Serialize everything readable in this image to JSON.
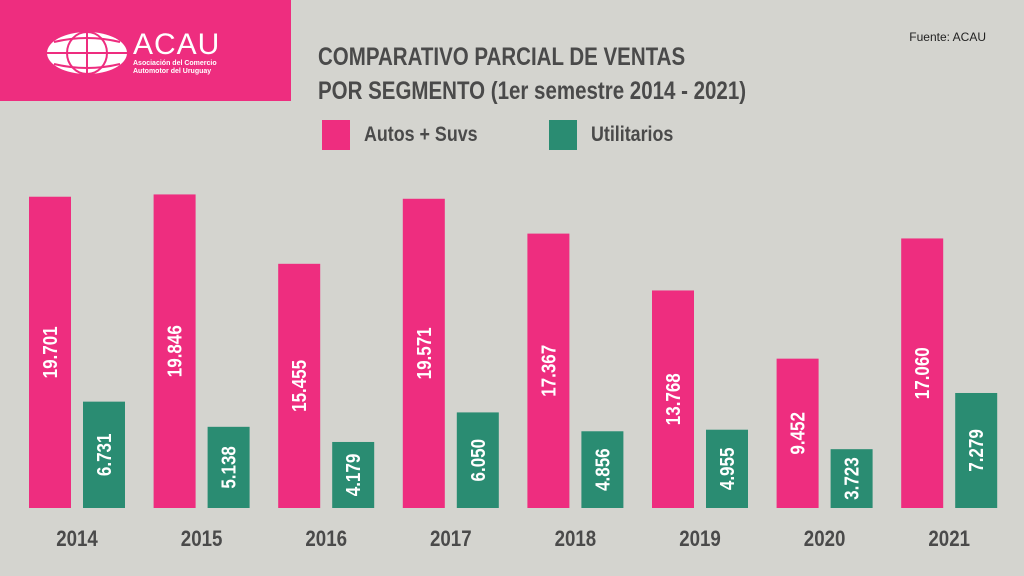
{
  "logo": {
    "name": "ACAU",
    "subtitle_line1": "Asociación del Comercio",
    "subtitle_line2": "Automotor del Uruguay"
  },
  "source": "Fuente: ACAU",
  "colors": {
    "autos": "#ee2d7f",
    "utilitarios": "#2a8c72",
    "background": "#d4d4cf"
  },
  "chart_data": {
    "type": "bar",
    "title_line1": "COMPARATIVO PARCIAL DE VENTAS",
    "title_line2": "POR SEGMENTO (1er semestre 2014 - 2021)",
    "categories": [
      "2014",
      "2015",
      "2016",
      "2017",
      "2018",
      "2019",
      "2020",
      "2021"
    ],
    "series": [
      {
        "name": "Autos + Suvs",
        "values": [
          19701,
          19846,
          15455,
          19571,
          17367,
          13768,
          9452,
          17060
        ],
        "labels": [
          "19.701",
          "19.846",
          "15.455",
          "19.571",
          "17.367",
          "13.768",
          "9.452",
          "17.060"
        ]
      },
      {
        "name": "Utilitarios",
        "values": [
          6731,
          5138,
          4179,
          6050,
          4856,
          4955,
          3723,
          7279
        ],
        "labels": [
          "6.731",
          "5.138",
          "4.179",
          "6.050",
          "4.856",
          "4.955",
          "3.723",
          "7.279"
        ]
      }
    ],
    "ylim": [
      0,
      20000
    ],
    "grid": false,
    "legend": "top-center"
  }
}
